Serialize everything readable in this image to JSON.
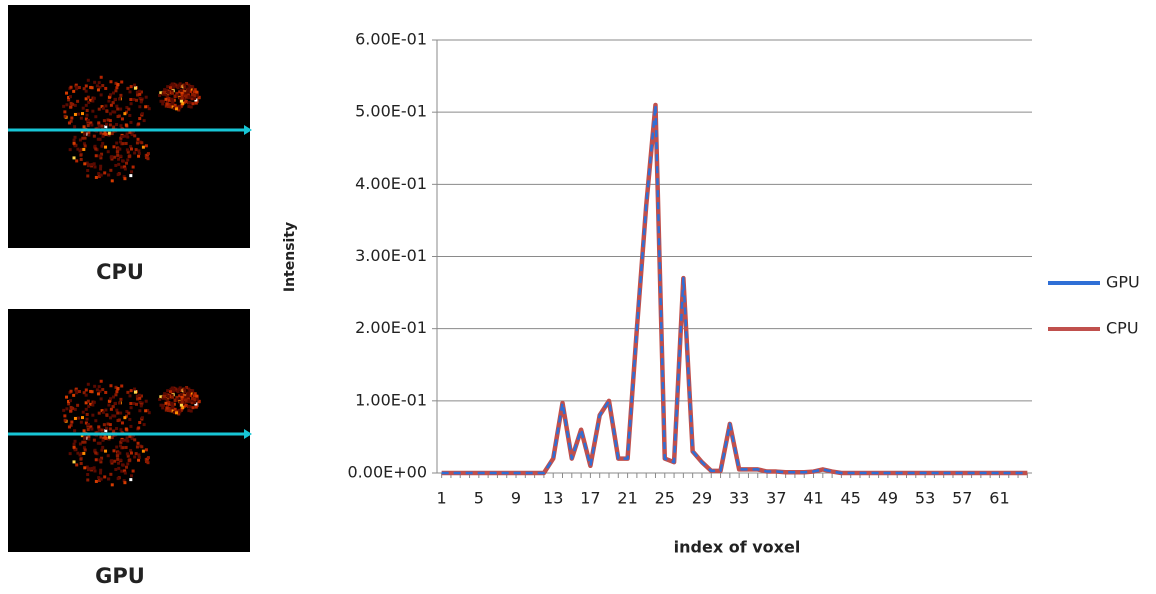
{
  "panels": [
    {
      "label": "CPU"
    },
    {
      "label": "GPU"
    }
  ],
  "chart_data": {
    "type": "line",
    "x_label": "index of voxel",
    "y_label": "Intensity",
    "x": [
      1,
      2,
      3,
      4,
      5,
      6,
      7,
      8,
      9,
      10,
      11,
      12,
      13,
      14,
      15,
      16,
      17,
      18,
      19,
      20,
      21,
      22,
      23,
      24,
      25,
      26,
      27,
      28,
      29,
      30,
      31,
      32,
      33,
      34,
      35,
      36,
      37,
      38,
      39,
      40,
      41,
      42,
      43,
      44,
      45,
      46,
      47,
      48,
      49,
      50,
      51,
      52,
      53,
      54,
      55,
      56,
      57,
      58,
      59,
      60,
      61,
      62,
      63,
      64
    ],
    "series": [
      {
        "name": "GPU",
        "color": "#2f6fd6",
        "values": [
          0,
          0,
          0,
          0,
          0,
          0,
          0,
          0,
          0,
          0,
          0,
          0,
          0.02,
          0.097,
          0.02,
          0.06,
          0.01,
          0.08,
          0.1,
          0.02,
          0.02,
          0.2,
          0.37,
          0.51,
          0.02,
          0.015,
          0.27,
          0.03,
          0.015,
          0.003,
          0.003,
          0.068,
          0.005,
          0.005,
          0.005,
          0.002,
          0.002,
          0.001,
          0.001,
          0.001,
          0.002,
          0.005,
          0.002,
          0,
          0,
          0,
          0,
          0,
          0,
          0,
          0,
          0,
          0,
          0,
          0,
          0,
          0,
          0,
          0,
          0,
          0,
          0,
          0,
          0
        ]
      },
      {
        "name": "CPU",
        "color": "#c0504d",
        "values": [
          0,
          0,
          0,
          0,
          0,
          0,
          0,
          0,
          0,
          0,
          0,
          0,
          0.02,
          0.097,
          0.02,
          0.06,
          0.01,
          0.08,
          0.1,
          0.02,
          0.02,
          0.2,
          0.37,
          0.51,
          0.02,
          0.015,
          0.27,
          0.03,
          0.015,
          0.003,
          0.003,
          0.068,
          0.005,
          0.005,
          0.005,
          0.002,
          0.002,
          0.001,
          0.001,
          0.001,
          0.002,
          0.005,
          0.002,
          0,
          0,
          0,
          0,
          0,
          0,
          0,
          0,
          0,
          0,
          0,
          0,
          0,
          0,
          0,
          0,
          0,
          0,
          0,
          0,
          0
        ]
      }
    ],
    "xlim": [
      0.5,
      64.5
    ],
    "xticks": [
      1,
      5,
      9,
      13,
      17,
      21,
      25,
      29,
      33,
      37,
      41,
      45,
      49,
      53,
      57,
      61
    ],
    "ylim": [
      0,
      0.6
    ],
    "yticks": [
      {
        "value": 0,
        "label": "0.00E+00"
      },
      {
        "value": 0.1,
        "label": "1.00E-01"
      },
      {
        "value": 0.2,
        "label": "2.00E-01"
      },
      {
        "value": 0.3,
        "label": "3.00E-01"
      },
      {
        "value": 0.4,
        "label": "4.00E-01"
      },
      {
        "value": 0.5,
        "label": "5.00E-01"
      },
      {
        "value": 0.6,
        "label": "6.00E-01"
      }
    ],
    "grid": true,
    "legend": "right"
  }
}
